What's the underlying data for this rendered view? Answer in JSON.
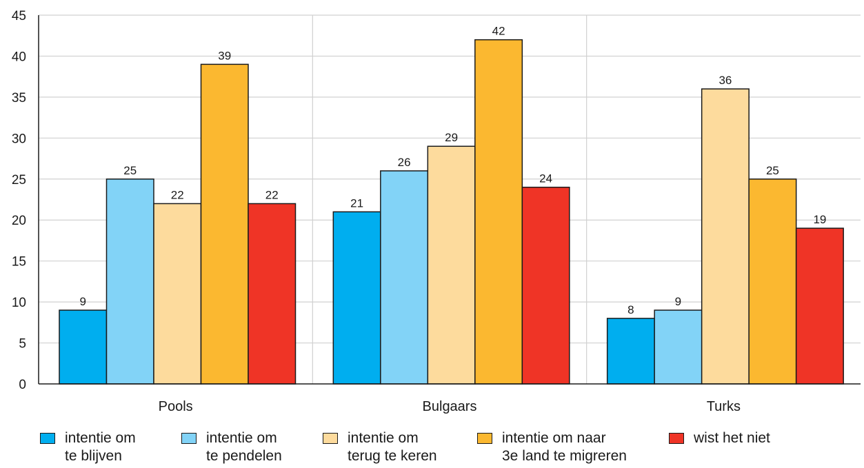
{
  "chart_data": {
    "type": "bar",
    "categories": [
      "Pools",
      "Bulgaars",
      "Turks"
    ],
    "series": [
      {
        "name": "intentie om\nte blijven",
        "color": "#00aeef",
        "values": [
          9,
          21,
          8
        ]
      },
      {
        "name": "intentie om\nte pendelen",
        "color": "#82d3f7",
        "values": [
          25,
          26,
          9
        ]
      },
      {
        "name": "intentie om\nterug te keren",
        "color": "#fddb9d",
        "values": [
          22,
          29,
          36
        ]
      },
      {
        "name": "intentie om naar\n3e land te migreren",
        "color": "#fbb830",
        "values": [
          39,
          42,
          25
        ]
      },
      {
        "name": "wist het niet",
        "color": "#ef3426",
        "values": [
          22,
          24,
          19
        ]
      }
    ],
    "yticks": [
      "0",
      "5",
      "10",
      "15",
      "20",
      "25",
      "30",
      "35",
      "40",
      "45"
    ],
    "ylim": [
      0,
      45
    ],
    "grid": true,
    "legend_position": "bottom"
  }
}
